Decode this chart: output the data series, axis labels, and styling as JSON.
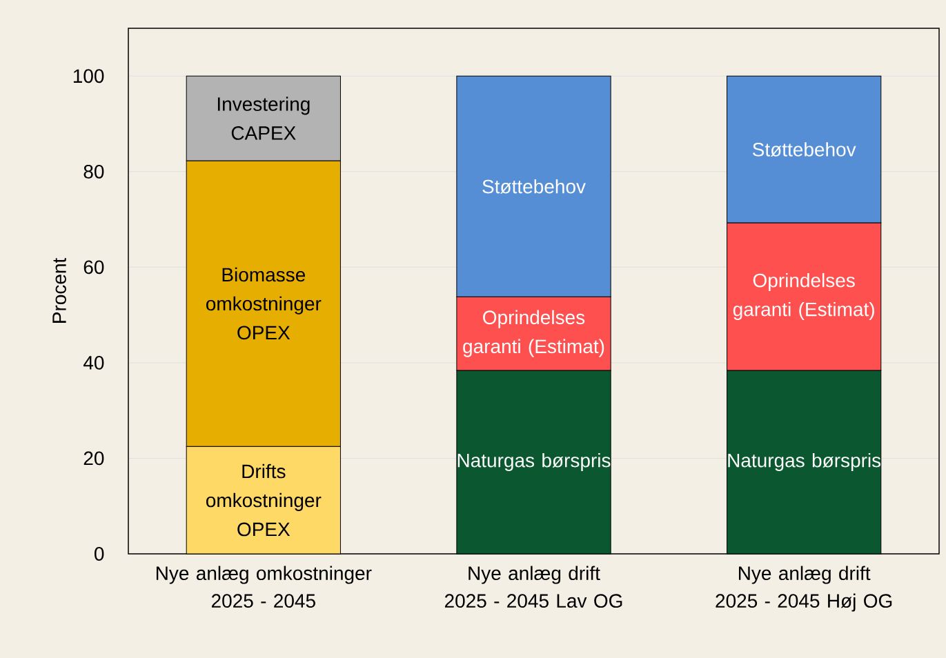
{
  "chart_data": {
    "type": "bar",
    "stacked": true,
    "ylabel": "Procent",
    "categories": [
      "Nye anlæg omkostninger 2025 - 2045",
      "Nye anlæg drift 2025 - 2045 Lav OG",
      "Nye anlæg drift 2025 - 2045 Høj OG"
    ],
    "series": [
      {
        "name": "Drifts omkostninger OPEX",
        "color": "#ffd966",
        "values": [
          22.5,
          null,
          null
        ]
      },
      {
        "name": "Biomasse omkostninger OPEX",
        "color": "#e6ae00",
        "values": [
          59.8,
          null,
          null
        ]
      },
      {
        "name": "Investering CAPEX",
        "color": "#b3b3b3",
        "values": [
          17.7,
          null,
          null
        ]
      },
      {
        "name": "Naturgas børspris",
        "color": "#0b5730",
        "values": [
          null,
          38.4,
          38.4
        ]
      },
      {
        "name": "Oprindelses garanti (Estimat)",
        "color": "#ff5050",
        "values": [
          null,
          15.4,
          30.9
        ]
      },
      {
        "name": "Støttebehov",
        "color": "#558ed5",
        "values": [
          null,
          46.2,
          30.7
        ]
      }
    ],
    "ylim": [
      0,
      110
    ],
    "yticks": [
      0,
      20,
      40,
      60,
      80,
      100
    ],
    "grid": "y"
  }
}
